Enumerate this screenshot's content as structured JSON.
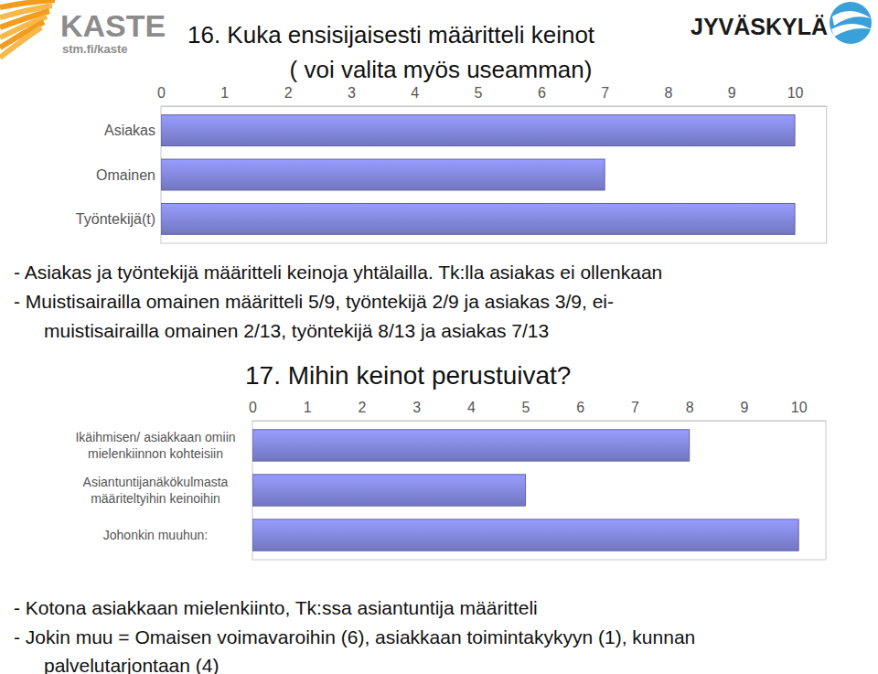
{
  "logos": [
    "KASTE",
    "stm.fi/kaste",
    "JYVÄSKYLÄ"
  ],
  "chart_data": [
    {
      "type": "bar",
      "orientation": "horizontal",
      "title": "16. Kuka ensisijaisesti määritteli keinot",
      "subtitle": "( voi valita myös useamman)",
      "categories": [
        "Asiakas",
        "Omainen",
        "Työntekijä(t)"
      ],
      "values": [
        10,
        7,
        10
      ],
      "color": "#7f83d6",
      "xlim": [
        0,
        10.5
      ],
      "xticks": [
        0,
        1,
        2,
        3,
        4,
        5,
        6,
        7,
        8,
        9,
        10
      ],
      "grid": false,
      "annotations": [
        "- Asiakas ja työntekijä määritteli keinoja yhtälailla. Tk:lla asiakas ei ollenkaan",
        "- Muistisairailla omainen määritteli 5/9, työntekijä 2/9 ja asiakas 3/9, ei-",
        "muistisairailla omainen 2/13, työntekijä 8/13 ja asiakas 7/13"
      ]
    },
    {
      "type": "bar",
      "orientation": "horizontal",
      "title": "17. Mihin keinot perustuivat?",
      "categories": [
        "Ikäihmisen/ asiakkaan omiin mielenkiinnon kohteisiin",
        "Asiantuntijanäkökulmasta määriteltyihin keinoihin",
        "Johonkin muuhun:"
      ],
      "values": [
        8,
        5,
        10
      ],
      "color": "#7f83d6",
      "xlim": [
        0,
        10.5
      ],
      "xticks": [
        0,
        1,
        2,
        3,
        4,
        5,
        6,
        7,
        8,
        9,
        10
      ],
      "grid": false,
      "annotations": [
        "- Kotona asiakkaan mielenkiinto, Tk:ssa asiantuntija määritteli",
        "- Jokin muu = Omaisen voimavaroihin (6), asiakkaan toimintakykyyn (1), kunnan",
        "palvelutarjontaan (4)"
      ]
    }
  ]
}
